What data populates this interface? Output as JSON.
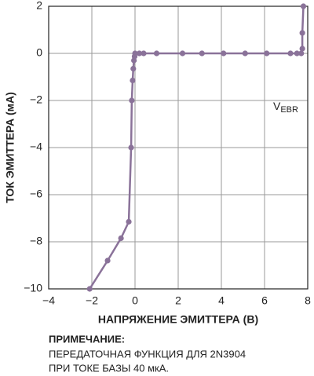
{
  "chart_data": {
    "type": "line",
    "x_label": "НАПРЯЖЕНИЕ ЭМИТТЕРА (В)",
    "y_label": "ТОК ЭМИТТЕРА (мА)",
    "x": [
      -2.1,
      -1.27,
      -0.65,
      -0.29,
      -0.18,
      -0.15,
      -0.11,
      -0.08,
      -0.05,
      -0.02,
      0,
      0.2,
      0.4,
      1.0,
      2.2,
      3.1,
      4.1,
      5.1,
      6.1,
      7.2,
      7.5,
      7.7,
      7.75,
      7.75,
      7.8
    ],
    "series": [
      {
        "color": "#8a7299",
        "values": [
          -10,
          -8.8,
          -7.85,
          -7.15,
          -4.0,
          -2.0,
          -1.15,
          -0.65,
          -0.3,
          -0.13,
          0,
          0,
          0,
          0,
          0,
          0,
          0,
          0,
          0,
          0,
          0,
          0,
          0.2,
          0.87,
          2
        ]
      }
    ],
    "xlim": [
      -4,
      8
    ],
    "ylim": [
      -10,
      2
    ],
    "xticks": [
      {
        "value": -4,
        "label": "−4"
      },
      {
        "value": -2,
        "label": "−2"
      },
      0,
      2,
      4,
      6,
      8
    ],
    "yticks": [
      {
        "value": -10,
        "label": "−10"
      },
      {
        "value": -8,
        "label": "−8"
      },
      {
        "value": -6,
        "label": "−6"
      },
      {
        "value": -4,
        "label": "−4"
      },
      {
        "value": -2,
        "label": "−2"
      },
      0,
      2
    ],
    "grid": true,
    "annotation": {
      "main": "V",
      "sub": "EBR"
    },
    "note": {
      "heading": "ПРИМЕЧАНИЕ:",
      "lines": [
        "ПЕРЕДАТОЧНАЯ ФУНКЦИЯ ДЛЯ 2N3904",
        "ПРИ ТОКЕ БАЗЫ 40 мкА."
      ]
    }
  }
}
